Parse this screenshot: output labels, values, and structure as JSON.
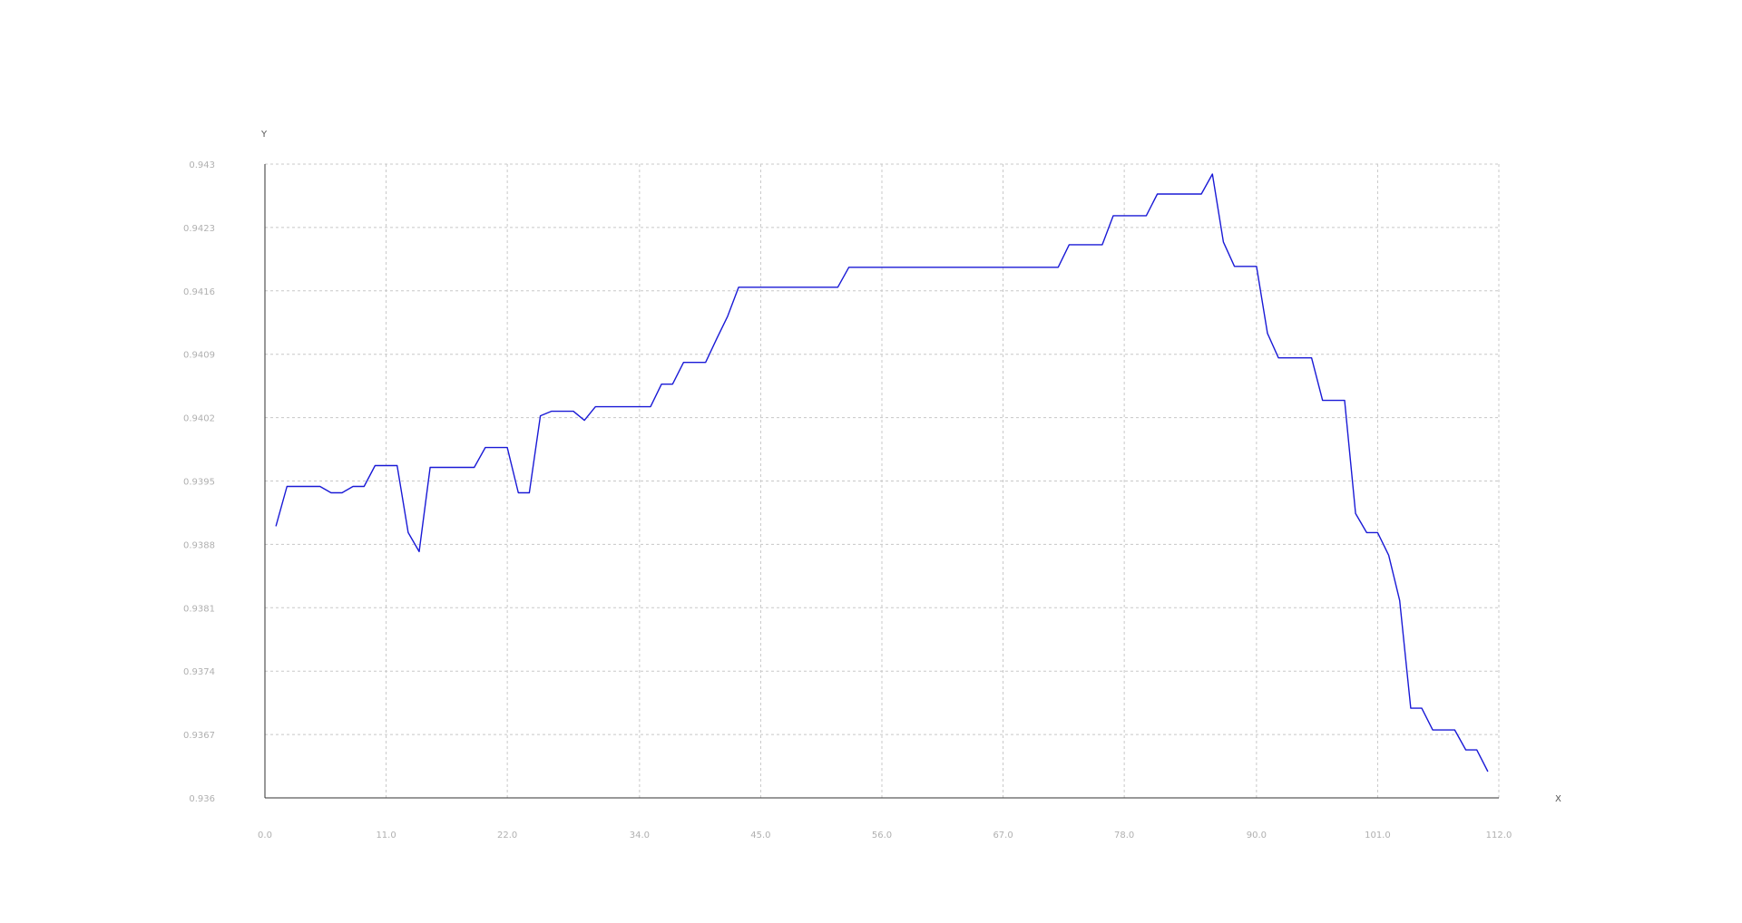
{
  "chart_data": {
    "type": "line",
    "title": "",
    "xlabel": "X",
    "ylabel": "Y",
    "xlim": [
      0,
      112
    ],
    "ylim": [
      0.936,
      0.943
    ],
    "grid": true,
    "legend": "none",
    "x_ticks": [
      0.0,
      11.0,
      22.0,
      34.0,
      45.0,
      56.0,
      67.0,
      78.0,
      90.0,
      101.0,
      112.0
    ],
    "x_tick_labels": [
      "0.0",
      "11.0",
      "22.0",
      "34.0",
      "45.0",
      "56.0",
      "67.0",
      "78.0",
      "90.0",
      "101.0",
      "112.0"
    ],
    "y_ticks": [
      0.936,
      0.9367,
      0.9374,
      0.9381,
      0.9388,
      0.9395,
      0.9402,
      0.9409,
      0.9416,
      0.9423,
      0.943
    ],
    "y_tick_labels": [
      "0.936",
      "0.9367",
      "0.9374",
      "0.9381",
      "0.9388",
      "0.9395",
      "0.9402",
      "0.9409",
      "0.9416",
      "0.9423",
      "0.943"
    ],
    "series": [
      {
        "color": "#1a1ad6",
        "x": [
          1,
          2,
          3,
          4,
          5,
          6,
          7,
          8,
          9,
          10,
          11,
          12,
          13,
          14,
          15,
          16,
          17,
          18,
          19,
          20,
          21,
          22,
          23,
          24,
          25,
          26,
          27,
          28,
          29,
          30,
          31,
          32,
          33,
          34,
          35,
          36,
          37,
          38,
          39,
          40,
          41,
          42,
          43,
          44,
          45,
          46,
          47,
          48,
          49,
          50,
          51,
          52,
          53,
          54,
          55,
          56,
          57,
          58,
          59,
          60,
          61,
          62,
          63,
          64,
          65,
          66,
          67,
          68,
          69,
          70,
          71,
          72,
          73,
          74,
          75,
          76,
          77,
          78,
          79,
          80,
          81,
          82,
          83,
          84,
          85,
          86,
          87,
          88,
          89,
          90,
          91,
          92,
          93,
          94,
          95,
          96,
          97,
          98,
          99,
          100,
          101,
          102,
          103,
          104,
          105,
          106,
          107,
          108,
          109,
          110,
          111
        ],
        "y": [
          0.939,
          0.93944,
          0.93944,
          0.93944,
          0.93944,
          0.93937,
          0.93937,
          0.93944,
          0.93944,
          0.93967,
          0.93967,
          0.93967,
          0.93893,
          0.93872,
          0.93965,
          0.93965,
          0.93965,
          0.93965,
          0.93965,
          0.93987,
          0.93987,
          0.93987,
          0.93937,
          0.93937,
          0.94022,
          0.94027,
          0.94027,
          0.94027,
          0.94017,
          0.94032,
          0.94032,
          0.94032,
          0.94032,
          0.94032,
          0.94032,
          0.94057,
          0.94057,
          0.94081,
          0.94081,
          0.94081,
          0.94107,
          0.94132,
          0.94164,
          0.94164,
          0.94164,
          0.94164,
          0.94164,
          0.94164,
          0.94164,
          0.94164,
          0.94164,
          0.94164,
          0.94186,
          0.94186,
          0.94186,
          0.94186,
          0.94186,
          0.94186,
          0.94186,
          0.94186,
          0.94186,
          0.94186,
          0.94186,
          0.94186,
          0.94186,
          0.94186,
          0.94186,
          0.94186,
          0.94186,
          0.94186,
          0.94186,
          0.94186,
          0.94211,
          0.94211,
          0.94211,
          0.94211,
          0.94243,
          0.94243,
          0.94243,
          0.94243,
          0.94267,
          0.94267,
          0.94267,
          0.94267,
          0.94267,
          0.94289,
          0.94214,
          0.94187,
          0.94187,
          0.94187,
          0.94113,
          0.94086,
          0.94086,
          0.94086,
          0.94086,
          0.94039,
          0.94039,
          0.94039,
          0.93914,
          0.93893,
          0.93893,
          0.93868,
          0.93818,
          0.93699,
          0.93699,
          0.93675,
          0.93675,
          0.93675,
          0.93653,
          0.93653,
          0.93629
        ]
      }
    ]
  }
}
